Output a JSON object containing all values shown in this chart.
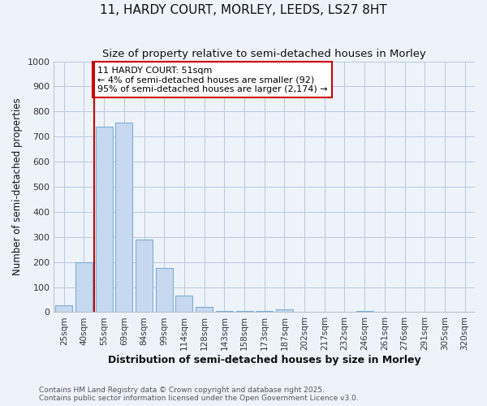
{
  "title": "11, HARDY COURT, MORLEY, LEEDS, LS27 8HT",
  "subtitle": "Size of property relative to semi-detached houses in Morley",
  "xlabel": "Distribution of semi-detached houses by size in Morley",
  "ylabel": "Number of semi-detached properties",
  "categories": [
    "25sqm",
    "40sqm",
    "55sqm",
    "69sqm",
    "84sqm",
    "99sqm",
    "114sqm",
    "128sqm",
    "143sqm",
    "158sqm",
    "173sqm",
    "187sqm",
    "202sqm",
    "217sqm",
    "232sqm",
    "246sqm",
    "261sqm",
    "276sqm",
    "291sqm",
    "305sqm",
    "320sqm"
  ],
  "values": [
    28,
    200,
    740,
    755,
    290,
    175,
    65,
    20,
    5,
    5,
    5,
    12,
    3,
    0,
    0,
    5,
    0,
    0,
    0,
    0,
    0
  ],
  "bar_color": "#c6d9f0",
  "bar_edge_color": "#7ab0d4",
  "red_line_x": 1.5,
  "ylim": [
    0,
    1000
  ],
  "yticks": [
    0,
    100,
    200,
    300,
    400,
    500,
    600,
    700,
    800,
    900,
    1000
  ],
  "annotation_title": "11 HARDY COURT: 51sqm",
  "annotation_line1": "← 4% of semi-detached houses are smaller (92)",
  "annotation_line2": "95% of semi-detached houses are larger (2,174) →",
  "annotation_box_color": "#cc0000",
  "footnote1": "Contains HM Land Registry data © Crown copyright and database right 2025.",
  "footnote2": "Contains public sector information licensed under the Open Government Licence v3.0.",
  "background_color": "#eef3fa",
  "plot_bg_color": "#eef3fa",
  "grid_color": "#b8c8e0",
  "title_fontsize": 11,
  "subtitle_fontsize": 9.5
}
